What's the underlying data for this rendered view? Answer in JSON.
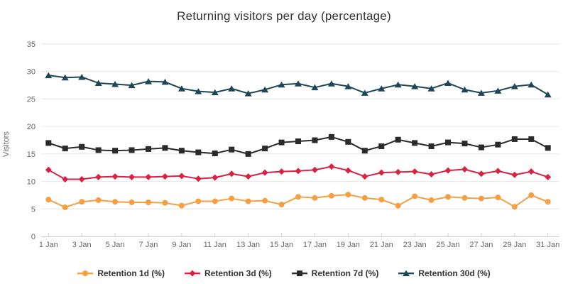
{
  "chart": {
    "title": "Returning visitors per day (percentage)",
    "y_axis_title": "Visitors"
  },
  "chart_data": {
    "type": "line",
    "title": "Returning visitors per day (percentage)",
    "xlabel": "",
    "ylabel": "Visitors",
    "ylim": [
      0,
      35
    ],
    "y_ticks": [
      0,
      5,
      10,
      15,
      20,
      25,
      30,
      35
    ],
    "grid": true,
    "legend_position": "bottom-center",
    "x_labels_every": 2,
    "categories": [
      "1 Jan",
      "2 Jan",
      "3 Jan",
      "4 Jan",
      "5 Jan",
      "6 Jan",
      "7 Jan",
      "8 Jan",
      "9 Jan",
      "10 Jan",
      "11 Jan",
      "12 Jan",
      "13 Jan",
      "14 Jan",
      "15 Jan",
      "16 Jan",
      "17 Jan",
      "18 Jan",
      "19 Jan",
      "20 Jan",
      "21 Jan",
      "22 Jan",
      "23 Jan",
      "24 Jan",
      "25 Jan",
      "26 Jan",
      "27 Jan",
      "28 Jan",
      "29 Jan",
      "30 Jan",
      "31 Jan"
    ],
    "series": [
      {
        "name": "Retention 1d (%)",
        "color": "#f4a042",
        "marker": "circle",
        "values": [
          6.7,
          5.3,
          6.3,
          6.6,
          6.3,
          6.2,
          6.2,
          6.1,
          5.6,
          6.4,
          6.4,
          6.9,
          6.4,
          6.5,
          5.8,
          7.2,
          7.0,
          7.4,
          7.6,
          7.0,
          6.7,
          5.6,
          7.3,
          6.6,
          7.2,
          7.0,
          6.9,
          7.1,
          5.4,
          7.5,
          6.3
        ]
      },
      {
        "name": "Retention 3d (%)",
        "color": "#d92142",
        "marker": "diamond",
        "values": [
          12.1,
          10.4,
          10.4,
          10.8,
          10.9,
          10.8,
          10.8,
          10.9,
          11.0,
          10.5,
          10.7,
          11.4,
          10.9,
          11.6,
          11.8,
          11.9,
          12.1,
          12.7,
          12.0,
          10.9,
          11.6,
          11.7,
          11.8,
          11.3,
          12.0,
          12.2,
          11.4,
          11.9,
          11.2,
          11.8,
          10.8
        ]
      },
      {
        "name": "Retention 7d (%)",
        "color": "#2b2b2b",
        "marker": "square",
        "values": [
          17.0,
          16.0,
          16.3,
          15.7,
          15.6,
          15.7,
          15.9,
          16.1,
          15.6,
          15.3,
          15.1,
          15.8,
          15.0,
          16.0,
          17.1,
          17.3,
          17.5,
          18.1,
          17.2,
          15.6,
          16.4,
          17.6,
          17.0,
          16.4,
          17.1,
          16.9,
          16.2,
          16.7,
          17.7,
          17.7,
          16.1
        ]
      },
      {
        "name": "Retention 30d (%)",
        "color": "#1d4757",
        "marker": "triangle",
        "values": [
          29.3,
          28.9,
          29.0,
          27.9,
          27.7,
          27.5,
          28.2,
          28.1,
          26.9,
          26.4,
          26.2,
          26.9,
          26.0,
          26.7,
          27.6,
          27.8,
          27.1,
          27.8,
          27.3,
          26.1,
          26.9,
          27.6,
          27.3,
          26.9,
          27.9,
          26.7,
          26.1,
          26.5,
          27.3,
          27.6,
          25.8
        ]
      }
    ]
  },
  "style_colors": {
    "grid_line": "#e6e6e6",
    "axis_line": "#ccd3dc",
    "tick_label": "#666666",
    "title_text": "#333333",
    "legend_text": "#333333"
  }
}
